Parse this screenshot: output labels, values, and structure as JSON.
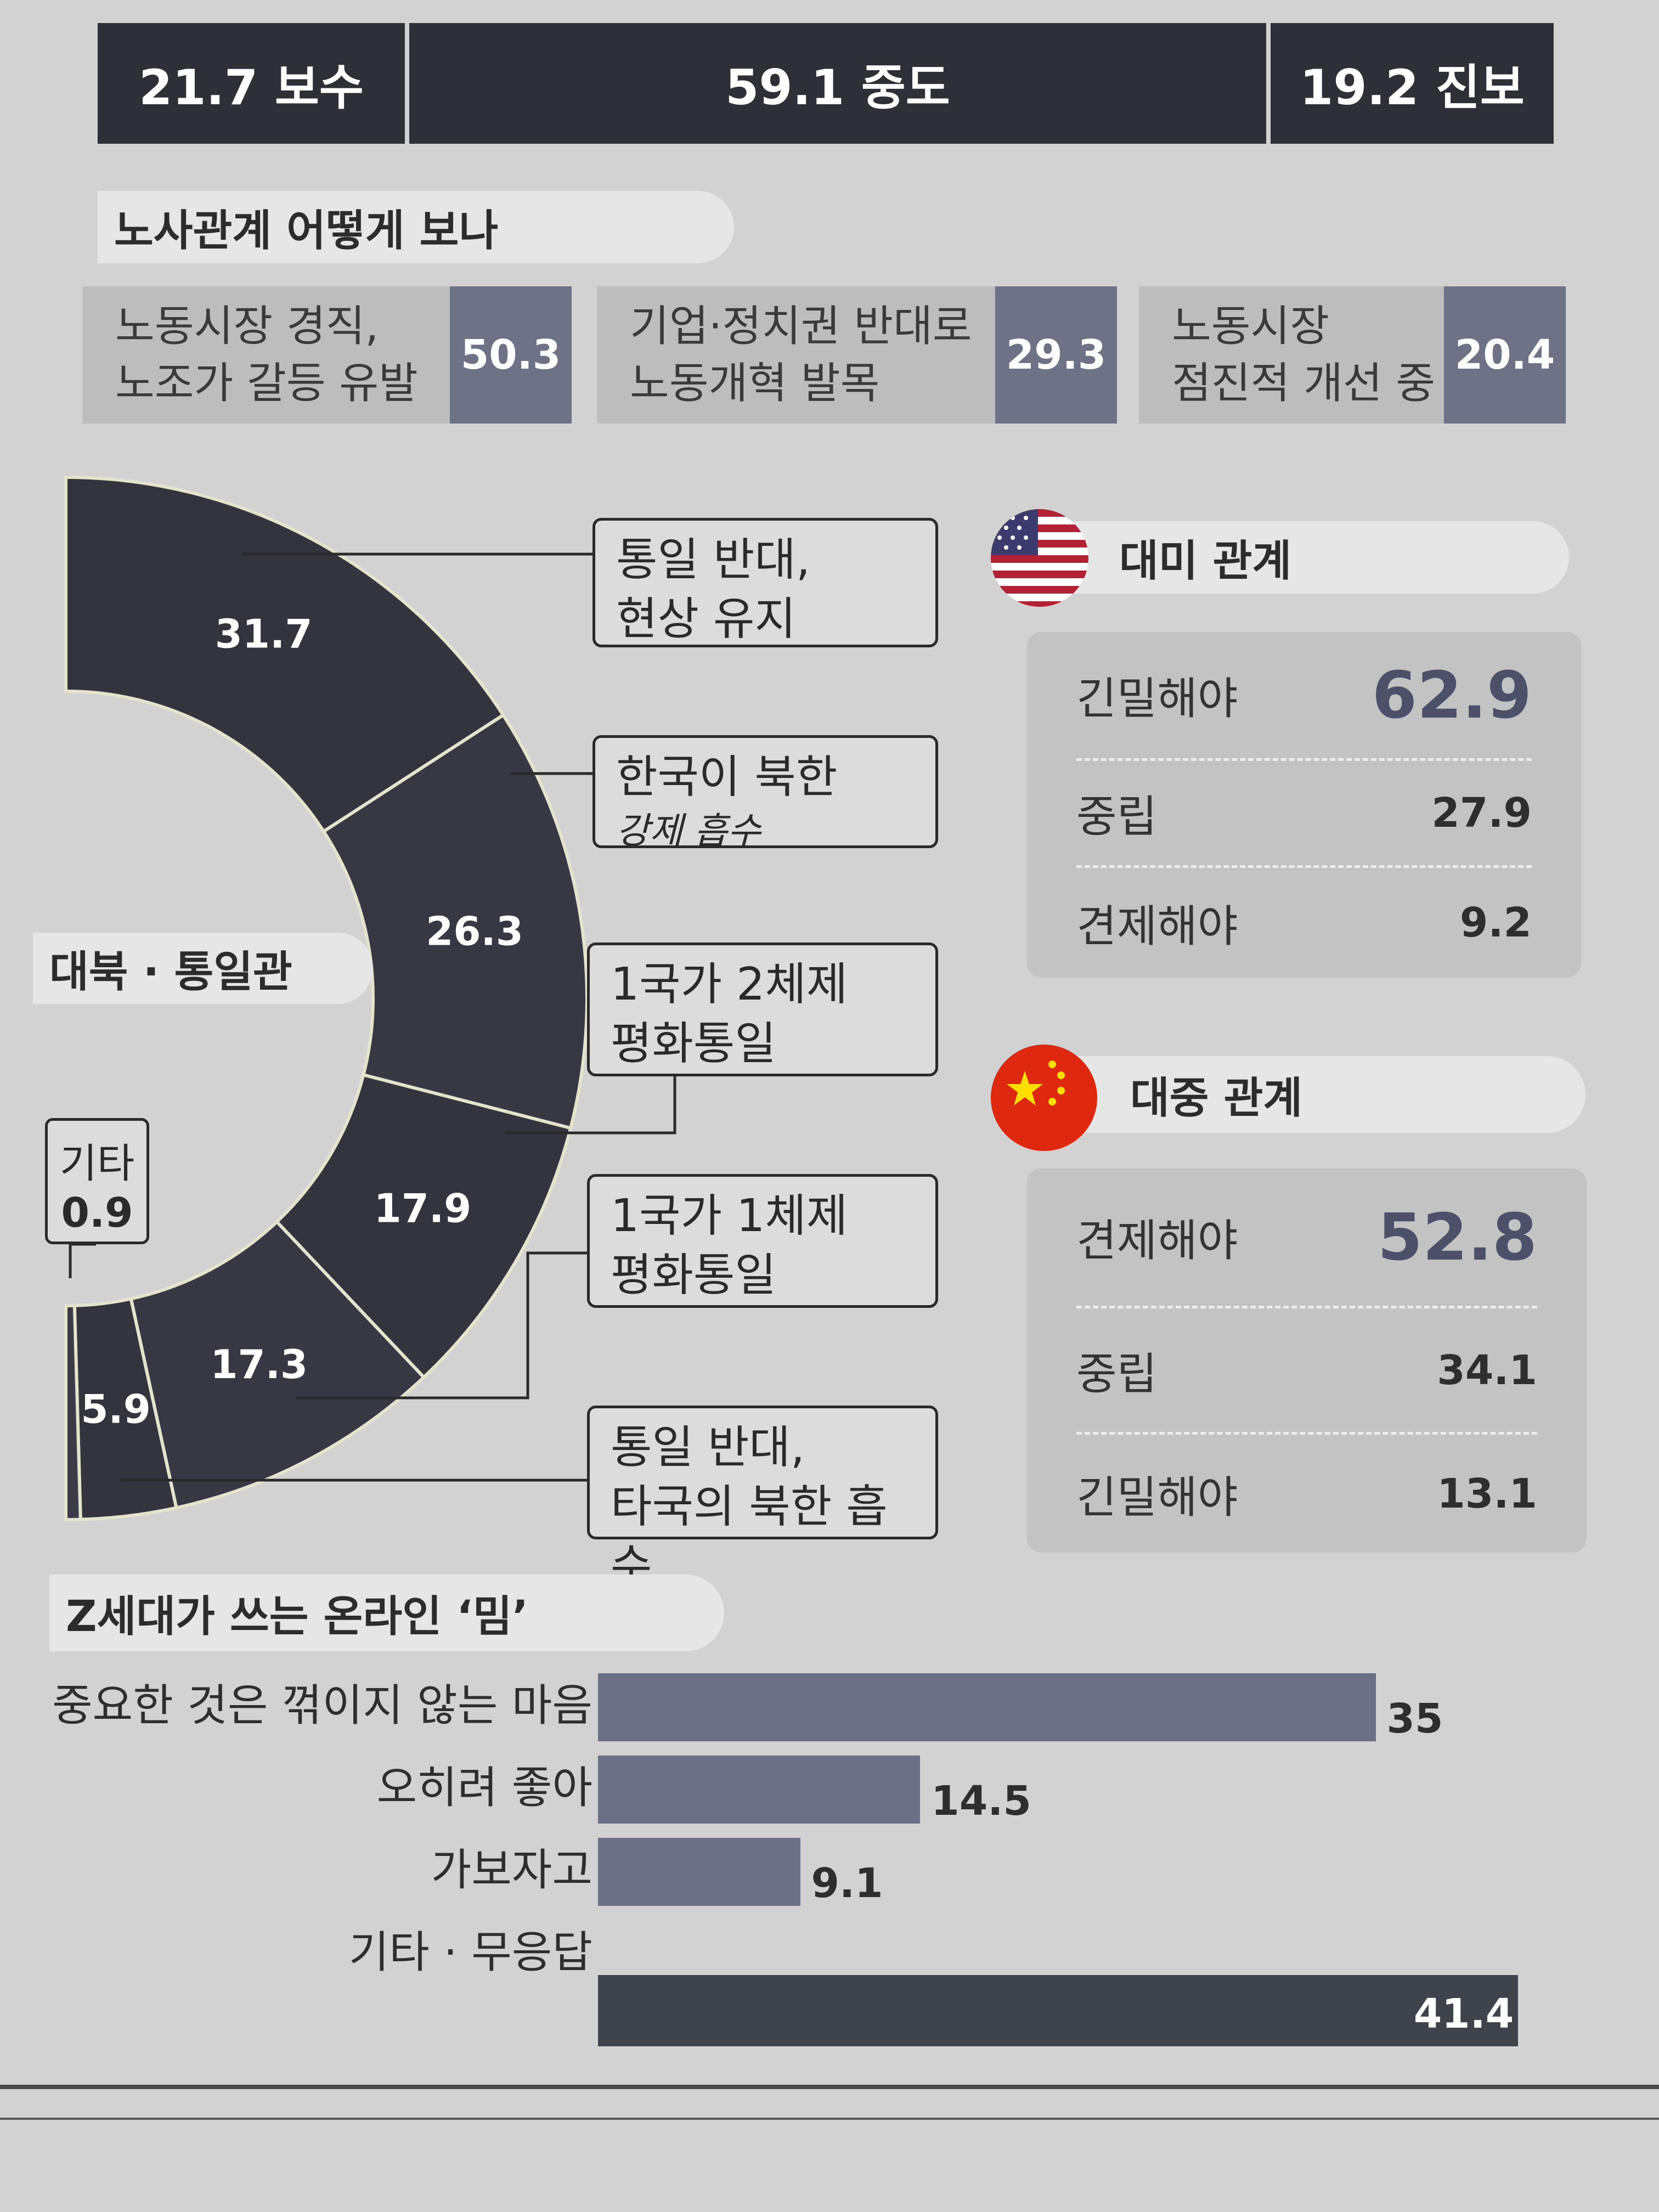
{
  "ideology": [
    {
      "label": "21.7 보수"
    },
    {
      "label": "59.1 중도"
    },
    {
      "label": "19.2 진보"
    }
  ],
  "labor": {
    "title": "노사관계 어떻게 보나",
    "items": [
      {
        "line1": "노동시장 경직,",
        "line2": "노조가 갈등 유발",
        "value": "50.3"
      },
      {
        "line1": "기업·정치권 반대로",
        "line2": "노동개혁 발목",
        "value": "29.3"
      },
      {
        "line1": "노동시장",
        "line2": "점진적 개선 중",
        "value": "20.4"
      }
    ]
  },
  "unification": {
    "title": "대북 · 통일관",
    "other_label": "기타",
    "other_value": "0.9",
    "callouts": [
      {
        "line1": "통일 반대,",
        "line2": "현상 유지"
      },
      {
        "line1": "한국이 북한",
        "line2": "강제 흡수"
      },
      {
        "line1": "1국가 2체제",
        "line2": "평화통일"
      },
      {
        "line1": "1국가 1체제",
        "line2": "평화통일"
      },
      {
        "line1": "통일 반대,",
        "line2": "타국의 북한 흡수"
      }
    ]
  },
  "usa": {
    "title": "대미 관계",
    "rows": [
      {
        "label": "긴밀해야",
        "value": "62.9"
      },
      {
        "label": "중립",
        "value": "27.9"
      },
      {
        "label": "견제해야",
        "value": "9.2"
      }
    ]
  },
  "china": {
    "title": "대중 관계",
    "rows": [
      {
        "label": "견제해야",
        "value": "52.8"
      },
      {
        "label": "중립",
        "value": "34.1"
      },
      {
        "label": "긴밀해야",
        "value": "13.1"
      }
    ]
  },
  "meme": {
    "title": "Z세대가 쓰는 온라인 ‘밈’"
  },
  "colors": {
    "dark": "#2f2f38",
    "accent": "#6a7085",
    "panel": "#c3c3c3"
  },
  "chart_data": [
    {
      "type": "pie",
      "title": "대북 · 통일관",
      "categories": [
        "통일 반대, 현상 유지",
        "한국이 북한 강제 흡수",
        "1국가 2체제 평화통일",
        "1국가 1체제 평화통일",
        "통일 반대, 타국의 북한 흡수",
        "기타"
      ],
      "values": [
        31.7,
        26.3,
        17.9,
        17.3,
        5.9,
        0.9
      ],
      "value_labels": [
        "31.7",
        "26.3",
        "17.9",
        "17.3",
        "5.9",
        "0.9"
      ]
    },
    {
      "type": "bar",
      "title": "Z세대가 쓰는 온라인 ‘밈’",
      "categories": [
        "중요한 것은 꺾이지 않는 마음",
        "오히려 좋아",
        "가보자고",
        "기타 · 무응답"
      ],
      "values": [
        35,
        14.5,
        9.1,
        41.4
      ],
      "value_labels": [
        "35",
        "14.5",
        "9.1",
        "41.4"
      ]
    }
  ]
}
